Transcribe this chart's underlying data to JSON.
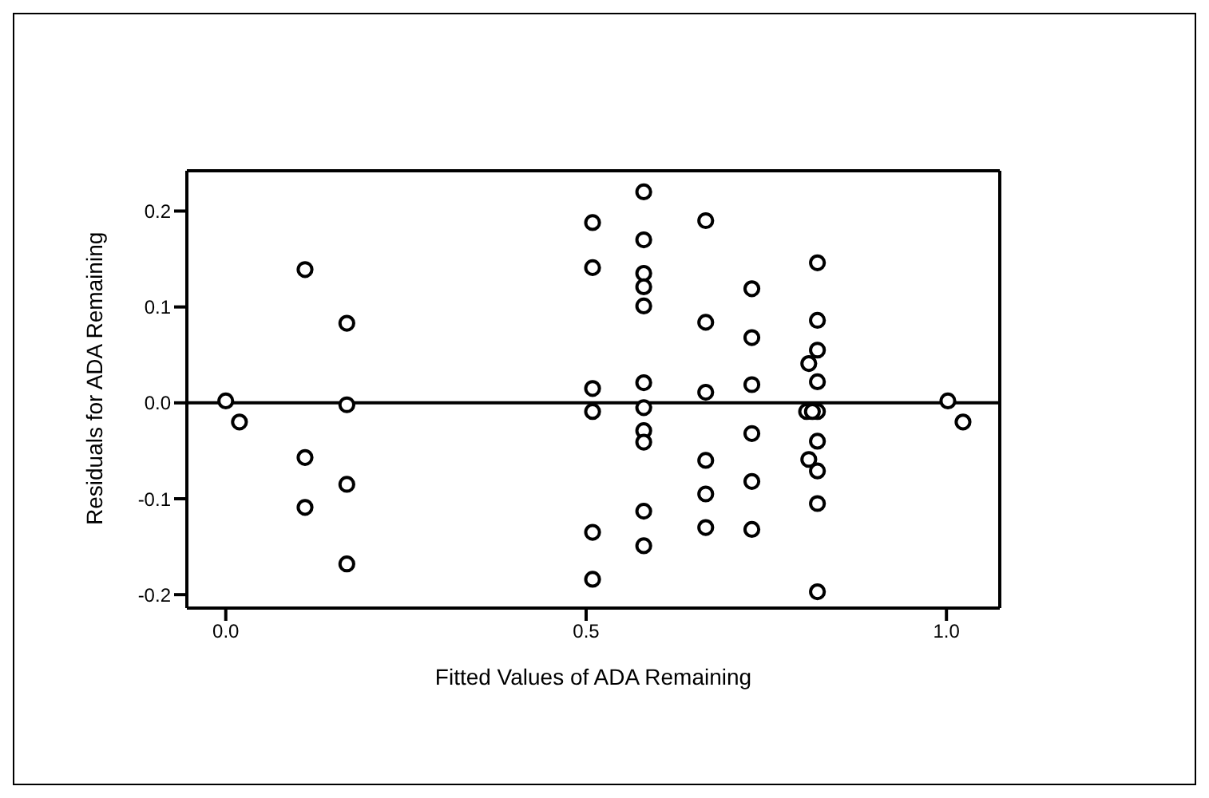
{
  "chart_data": {
    "type": "scatter",
    "xlabel": "Fitted Values of ADA Remaining",
    "ylabel": "Residuals for ADA Remaining",
    "x": [
      0.0,
      0.019,
      0.11,
      0.11,
      0.11,
      0.168,
      0.168,
      0.168,
      0.168,
      0.509,
      0.509,
      0.509,
      0.509,
      0.509,
      0.509,
      0.58,
      0.58,
      0.58,
      0.58,
      0.58,
      0.58,
      0.58,
      0.58,
      0.58,
      0.58,
      0.58,
      0.666,
      0.666,
      0.666,
      0.666,
      0.666,
      0.666,
      0.73,
      0.73,
      0.73,
      0.73,
      0.73,
      0.73,
      0.821,
      0.821,
      0.821,
      0.821,
      0.821,
      0.821,
      0.821,
      0.821,
      0.821,
      0.809,
      0.806,
      0.809,
      0.814,
      1.002,
      1.023
    ],
    "values": [
      0.002,
      -0.02,
      0.139,
      -0.057,
      -0.109,
      0.083,
      -0.002,
      -0.085,
      -0.168,
      0.188,
      0.141,
      0.015,
      -0.009,
      -0.135,
      -0.184,
      0.22,
      0.17,
      0.135,
      0.121,
      0.101,
      0.021,
      -0.005,
      -0.029,
      -0.041,
      -0.113,
      -0.149,
      0.19,
      0.084,
      0.011,
      -0.06,
      -0.095,
      -0.13,
      0.119,
      0.068,
      0.019,
      -0.032,
      -0.082,
      -0.132,
      0.146,
      0.086,
      0.055,
      0.022,
      -0.009,
      -0.04,
      -0.071,
      -0.105,
      -0.197,
      0.041,
      -0.009,
      -0.059,
      -0.009,
      0.002,
      -0.02
    ],
    "color": "#000000",
    "marker": "circle",
    "xlim": [
      -0.054,
      1.074
    ],
    "xticks": [
      {
        "value": 0,
        "label": "0.0"
      },
      0.5,
      {
        "value": 1,
        "label": "1.0"
      }
    ],
    "ylim": [
      -0.214,
      0.242
    ],
    "yticks": [
      -0.2,
      -0.1,
      {
        "value": 0,
        "label": "0.0"
      },
      0.1,
      0.2
    ],
    "ref_lines": [
      {
        "axis": "y",
        "value": 0,
        "color": "#000000"
      }
    ],
    "grid": false,
    "legend": false
  }
}
